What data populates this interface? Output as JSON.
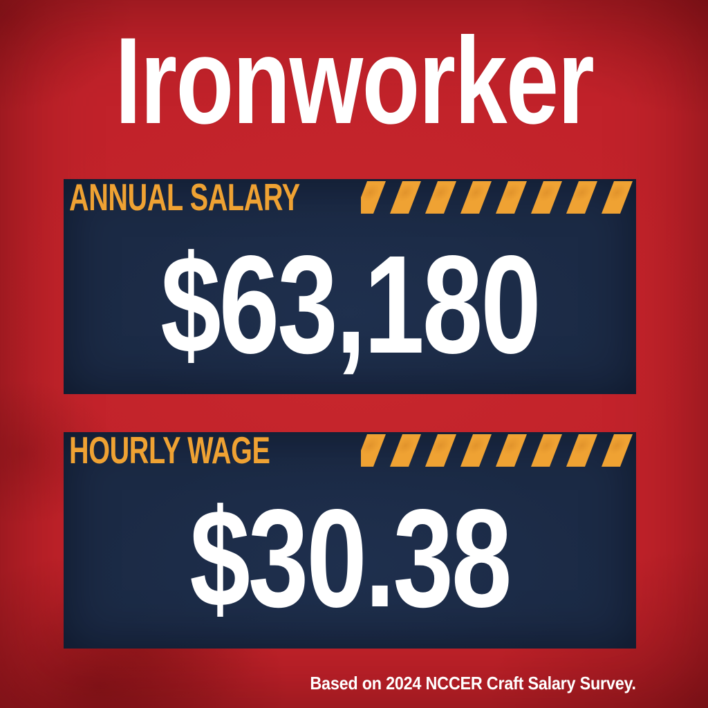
{
  "title": "Ironworker",
  "panels": [
    {
      "id": "annual-salary",
      "label": "ANNUAL SALARY",
      "value": "$63,180"
    },
    {
      "id": "hourly-wage",
      "label": "HOURLY WAGE",
      "value": "$30.38"
    }
  ],
  "source_note": "Based on 2024 NCCER Craft Salary Survey.",
  "hazard": {
    "stripe_count": 8
  },
  "colors": {
    "background_red": "#C1222A",
    "panel_navy": "#1B2A45",
    "accent_orange": "#EFA233",
    "text_white": "#FFFFFF"
  }
}
